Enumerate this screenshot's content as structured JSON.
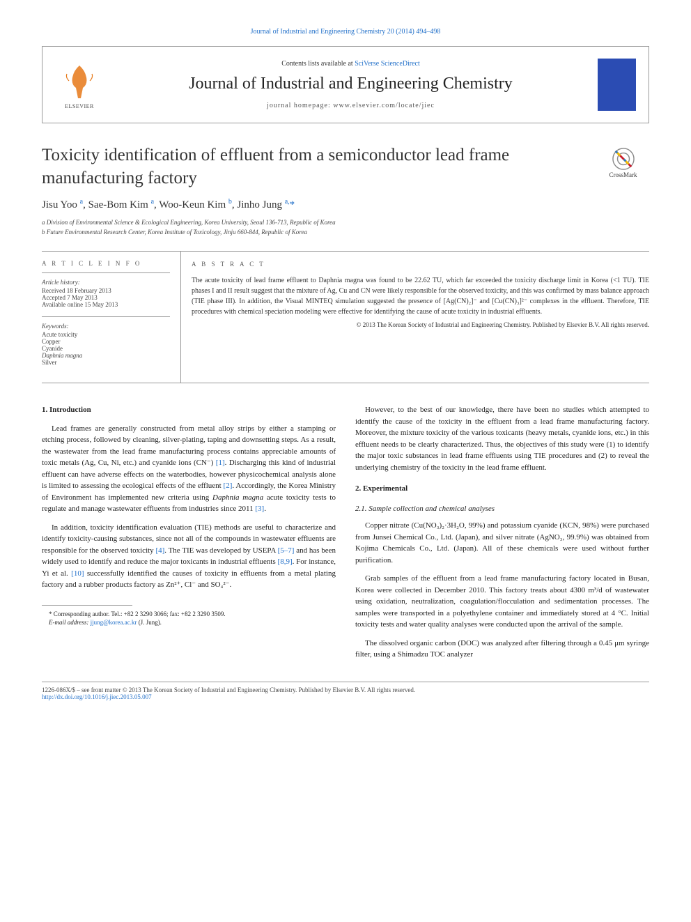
{
  "header": {
    "top_link": "Journal of Industrial and Engineering Chemistry 20 (2014) 494–498",
    "contents_available": "Contents lists available at ",
    "sciencedirect": "SciVerse ScienceDirect",
    "journal_name": "Journal of Industrial and Engineering Chemistry",
    "homepage_prefix": "journal homepage: ",
    "homepage": "www.elsevier.com/locate/jiec",
    "elsevier_label": "ELSEVIER"
  },
  "crossmark": {
    "label": "CrossMark"
  },
  "article": {
    "title": "Toxicity identification of effluent from a semiconductor lead frame manufacturing factory",
    "authors_html": "Jisu Yoo <sup>a</sup>, Sae-Bom Kim <sup>a</sup>, Woo-Keun Kim <sup>b</sup>, Jinho Jung <sup>a,*</sup>",
    "affiliations": [
      "a Division of Environmental Science & Ecological Engineering, Korea University, Seoul 136-713, Republic of Korea",
      "b Future Environmental Research Center, Korea Institute of Toxicology, Jinju 660-844, Republic of Korea"
    ]
  },
  "meta": {
    "info_label": "A R T I C L E   I N F O",
    "abstract_label": "A B S T R A C T",
    "history_label": "Article history:",
    "history": [
      "Received 18 February 2013",
      "Accepted 7 May 2013",
      "Available online 15 May 2013"
    ],
    "keywords_label": "Keywords:",
    "keywords": [
      "Acute toxicity",
      "Copper",
      "Cyanide",
      "Daphnia magna",
      "Silver"
    ],
    "abstract": "The acute toxicity of lead frame effluent to Daphnia magna was found to be 22.62 TU, which far exceeded the toxicity discharge limit in Korea (<1 TU). TIE phases I and II result suggest that the mixture of Ag, Cu and CN were likely responsible for the observed toxicity, and this was confirmed by mass balance approach (TIE phase III). In addition, the Visual MINTEQ simulation suggested the presence of [Ag(CN)₂]⁻ and [Cu(CN)₃]²⁻ complexes in the effluent. Therefore, TIE procedures with chemical speciation modeling were effective for identifying the cause of acute toxicity in industrial effluents.",
    "copyright": "© 2013 The Korean Society of Industrial and Engineering Chemistry. Published by Elsevier B.V. All rights reserved."
  },
  "body": {
    "s1_heading": "1. Introduction",
    "p1": "Lead frames are generally constructed from metal alloy strips by either a stamping or etching process, followed by cleaning, silver-plating, taping and downsetting steps. As a result, the wastewater from the lead frame manufacturing process contains appreciable amounts of toxic metals (Ag, Cu, Ni, etc.) and cyanide ions (CN⁻) [1]. Discharging this kind of industrial effluent can have adverse effects on the waterbodies, however physicochemical analysis alone is limited to assessing the ecological effects of the effluent [2]. Accordingly, the Korea Ministry of Environment has implemented new criteria using Daphnia magna acute toxicity tests to regulate and manage wastewater effluents from industries since 2011 [3].",
    "p2": "In addition, toxicity identification evaluation (TIE) methods are useful to characterize and identify toxicity-causing substances, since not all of the compounds in wastewater effluents are responsible for the observed toxicity [4]. The TIE was developed by USEPA [5–7] and has been widely used to identify and reduce the major toxicants in industrial effluents [8,9]. For instance, Yi et al. [10] successfully identified the causes of toxicity in effluents from a metal plating factory and a rubber products factory as Zn²⁺, Cl⁻ and SO₄²⁻.",
    "p3": "However, to the best of our knowledge, there have been no studies which attempted to identify the cause of the toxicity in the effluent from a lead frame manufacturing factory. Moreover, the mixture toxicity of the various toxicants (heavy metals, cyanide ions, etc.) in this effluent needs to be clearly characterized. Thus, the objectives of this study were (1) to identify the major toxic substances in lead frame effluents using TIE procedures and (2) to reveal the underlying chemistry of the toxicity in the lead frame effluent.",
    "s2_heading": "2. Experimental",
    "s21_heading": "2.1. Sample collection and chemical analyses",
    "p4": "Copper nitrate (Cu(NO₃)₂·3H₂O, 99%) and potassium cyanide (KCN, 98%) were purchased from Junsei Chemical Co., Ltd. (Japan), and silver nitrate (AgNO₃, 99.9%) was obtained from Kojima Chemicals Co., Ltd. (Japan). All of these chemicals were used without further purification.",
    "p5": "Grab samples of the effluent from a lead frame manufacturing factory located in Busan, Korea were collected in December 2010. This factory treats about 4300 m³/d of wastewater using oxidation, neutralization, coagulation/flocculation and sedimentation processes. The samples were transported in a polyethylene container and immediately stored at 4 °C. Initial toxicity tests and water quality analyses were conducted upon the arrival of the sample.",
    "p6": "The dissolved organic carbon (DOC) was analyzed after filtering through a 0.45 μm syringe filter, using a Shimadzu TOC analyzer"
  },
  "footnote": {
    "line1": "* Corresponding author. Tel.: +82 2 3290 3066; fax: +82 2 3290 3509.",
    "line2_label": "E-mail address: ",
    "line2_email": "jjung@korea.ac.kr",
    "line2_suffix": " (J. Jung)."
  },
  "footer": {
    "line1": "1226-086X/$ – see front matter © 2013 The Korean Society of Industrial and Engineering Chemistry. Published by Elsevier B.V. All rights reserved.",
    "doi": "http://dx.doi.org/10.1016/j.jiec.2013.05.007"
  },
  "colors": {
    "link": "#2270c9",
    "cover_bg": "#2b4cb3",
    "border": "#999999"
  }
}
